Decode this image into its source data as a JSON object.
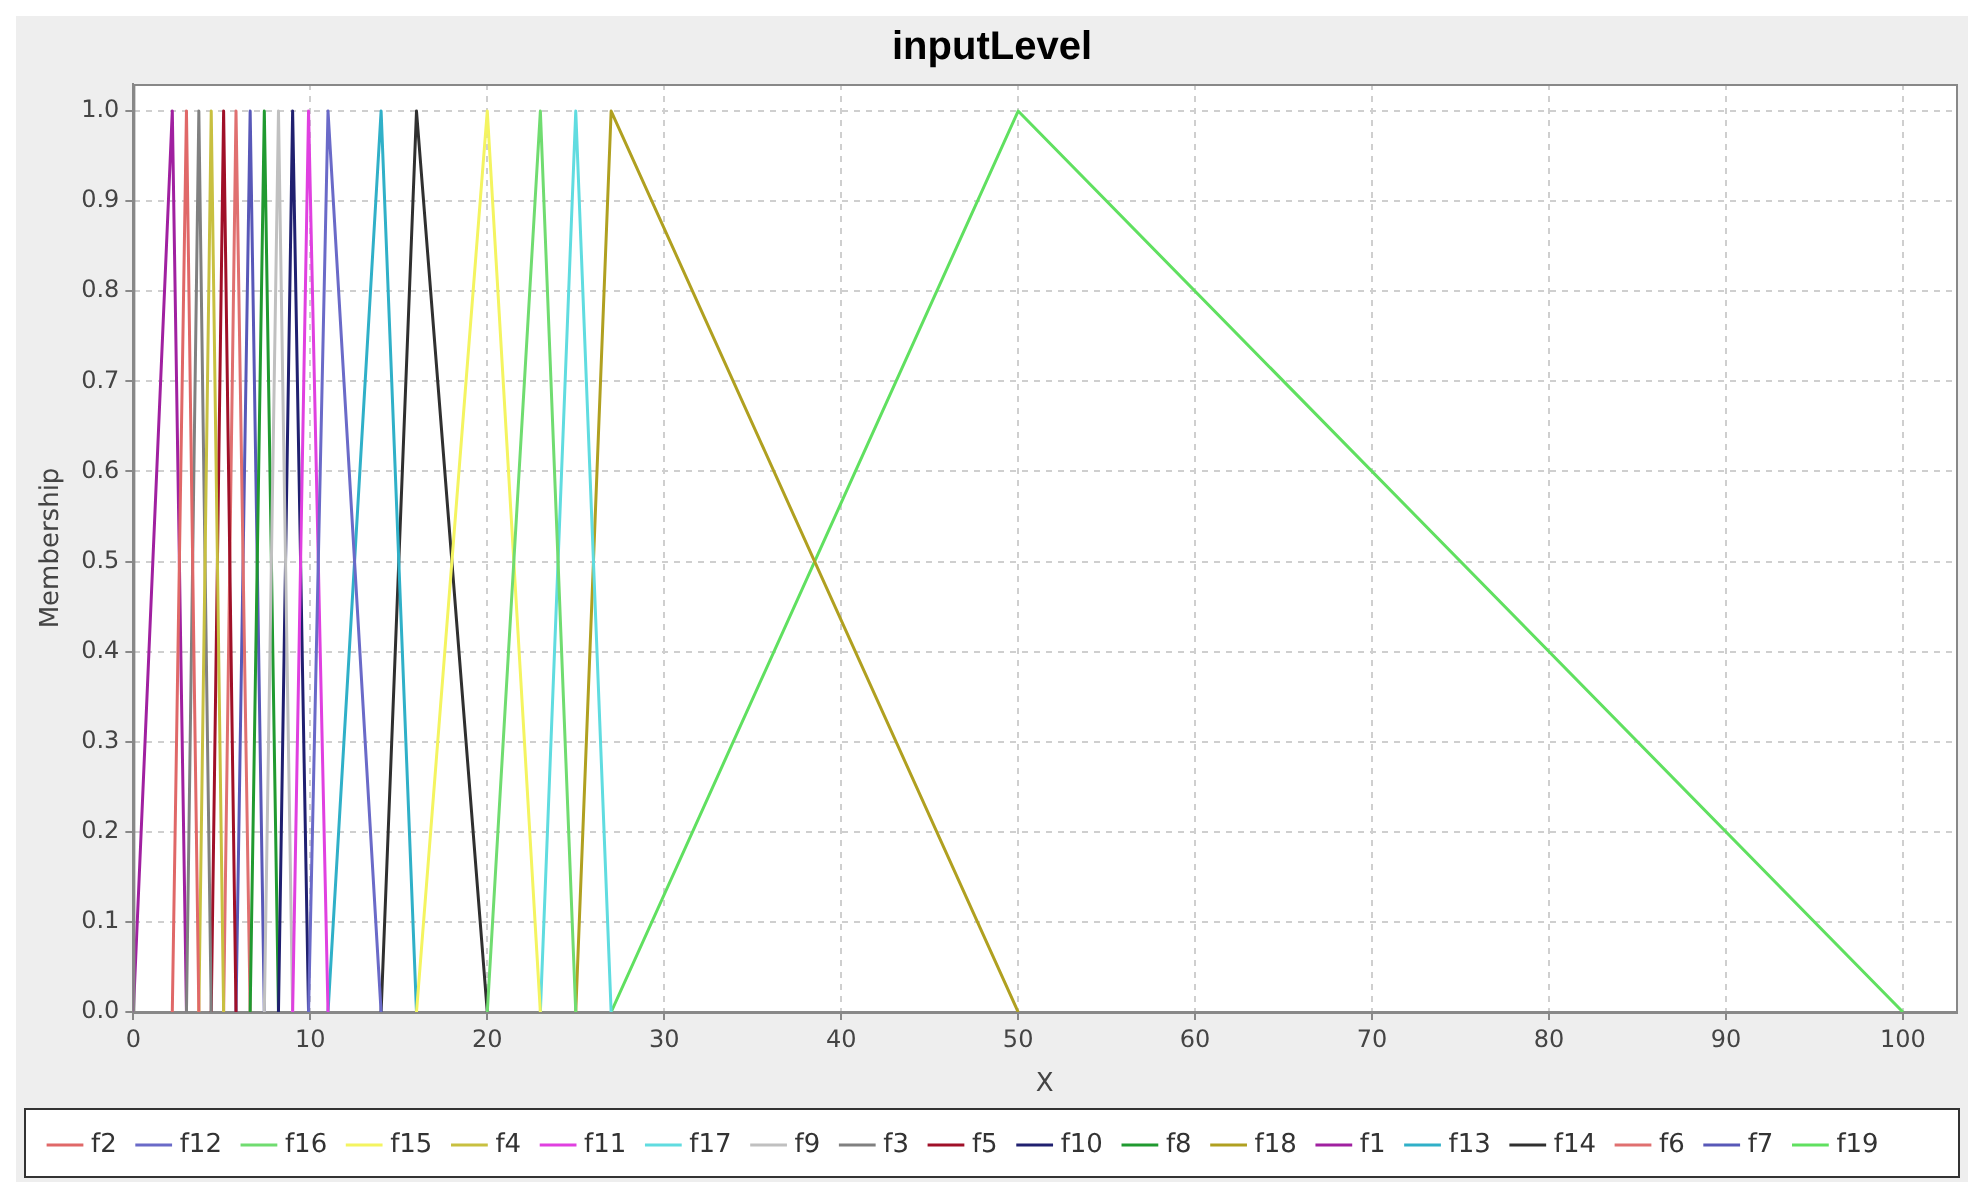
{
  "chart_data": {
    "type": "line",
    "title": "inputLevel",
    "xlabel": "X",
    "ylabel": "Membership",
    "xlim": [
      0,
      103
    ],
    "ylim": [
      0,
      1.03
    ],
    "xticks": [
      0,
      10,
      20,
      30,
      40,
      50,
      60,
      70,
      80,
      90,
      100
    ],
    "yticks": [
      {
        "value": 0,
        "label": "0.0"
      },
      0.1,
      0.2,
      0.3,
      0.4,
      0.5,
      0.6,
      0.7,
      0.8,
      0.9,
      {
        "value": 1,
        "label": "1.0"
      }
    ],
    "grid": true,
    "legend": "bottom",
    "marker": "none",
    "line_style": "solid",
    "series": [
      {
        "name": "f2",
        "color": "#e06868",
        "x": [
          2.2,
          3,
          3.7
        ],
        "values": [
          0,
          1,
          0
        ]
      },
      {
        "name": "f12",
        "color": "#6a6ac8",
        "x": [
          9.9,
          11,
          14
        ],
        "values": [
          0,
          1,
          0
        ]
      },
      {
        "name": "f16",
        "color": "#70dc70",
        "x": [
          20,
          23,
          25
        ],
        "values": [
          0,
          1,
          0
        ]
      },
      {
        "name": "f15",
        "color": "#f4f460",
        "x": [
          16,
          20,
          23
        ],
        "values": [
          0,
          1,
          0
        ]
      },
      {
        "name": "f4",
        "color": "#c8c040",
        "x": [
          3.7,
          4.4,
          5.1
        ],
        "values": [
          0,
          1,
          0
        ]
      },
      {
        "name": "f11",
        "color": "#e040e0",
        "x": [
          9,
          9.9,
          11
        ],
        "values": [
          0,
          1,
          0
        ]
      },
      {
        "name": "f17",
        "color": "#60dce0",
        "x": [
          23,
          25,
          27
        ],
        "values": [
          0,
          1,
          0
        ]
      },
      {
        "name": "f9",
        "color": "#c0c0c0",
        "x": [
          7.4,
          8.2,
          9
        ],
        "values": [
          0,
          1,
          0
        ]
      },
      {
        "name": "f3",
        "color": "#808080",
        "x": [
          3,
          3.7,
          4.4
        ],
        "values": [
          0,
          1,
          0
        ]
      },
      {
        "name": "f5",
        "color": "#a01028",
        "x": [
          4.4,
          5.1,
          5.8
        ],
        "values": [
          0,
          1,
          0
        ]
      },
      {
        "name": "f10",
        "color": "#202070",
        "x": [
          8.2,
          9,
          9.9
        ],
        "values": [
          0,
          1,
          0
        ]
      },
      {
        "name": "f8",
        "color": "#209a30",
        "x": [
          6.6,
          7.4,
          8.2
        ],
        "values": [
          0,
          1,
          0
        ]
      },
      {
        "name": "f18",
        "color": "#b0a020",
        "x": [
          25,
          27,
          50
        ],
        "values": [
          0,
          1,
          0
        ]
      },
      {
        "name": "f1",
        "color": "#a020a0",
        "x": [
          0,
          2.2,
          3
        ],
        "values": [
          0,
          1,
          0
        ]
      },
      {
        "name": "f13",
        "color": "#30b0c8",
        "x": [
          11,
          14,
          16
        ],
        "values": [
          0,
          1,
          0
        ]
      },
      {
        "name": "f14",
        "color": "#303030",
        "x": [
          14,
          16,
          20
        ],
        "values": [
          0,
          1,
          0
        ]
      },
      {
        "name": "f6",
        "color": "#e07070",
        "x": [
          5.1,
          5.8,
          6.6
        ],
        "values": [
          0,
          1,
          0
        ]
      },
      {
        "name": "f7",
        "color": "#5858b8",
        "x": [
          5.8,
          6.6,
          7.4
        ],
        "values": [
          0,
          1,
          0
        ]
      },
      {
        "name": "f19",
        "color": "#60e060",
        "x": [
          27,
          50,
          100
        ],
        "values": [
          0,
          1,
          0
        ]
      }
    ]
  }
}
